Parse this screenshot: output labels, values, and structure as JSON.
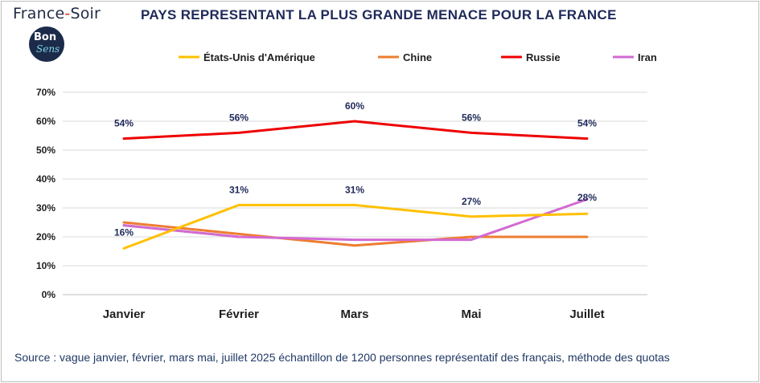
{
  "brand": {
    "name_left": "France",
    "name_dash": "-",
    "name_right": "Soir",
    "logo_line1": "Bon",
    "logo_line2": "Sens"
  },
  "chart_data": {
    "type": "line",
    "title": "PAYS REPRESENTANT LA PLUS GRANDE MENACE POUR LA FRANCE",
    "categories": [
      "Janvier",
      "Février",
      "Mars",
      "Mai",
      "Juillet"
    ],
    "ylim": [
      0,
      70
    ],
    "yticks": [
      0,
      10,
      20,
      30,
      40,
      50,
      60,
      70
    ],
    "ytick_labels": [
      "0%",
      "10%",
      "20%",
      "30%",
      "40%",
      "50%",
      "60%",
      "70%"
    ],
    "grid": true,
    "legend_position": "top",
    "series": [
      {
        "name": "États-Unis d'Amérique",
        "color": "#ffc000",
        "values": [
          16,
          31,
          31,
          27,
          28
        ],
        "labels": [
          "16%",
          "31%",
          "31%",
          "27%",
          "28%"
        ]
      },
      {
        "name": "Chine",
        "color": "#ed7d31",
        "values": [
          25,
          21,
          17,
          20,
          20
        ],
        "labels": []
      },
      {
        "name": "Russie",
        "color": "#ee0000",
        "values": [
          54,
          56,
          60,
          56,
          54
        ],
        "labels": [
          "54%",
          "56%",
          "60%",
          "56%",
          "54%"
        ]
      },
      {
        "name": "Iran",
        "color": "#d36ad3",
        "values": [
          24,
          20,
          19,
          19,
          33
        ],
        "labels": []
      }
    ],
    "extra_series": {
      "color": "#a5a5a5",
      "values": [
        24,
        20,
        null,
        null,
        null
      ]
    }
  },
  "source": "Source : vague janvier, février, mars  mai, juillet 2025 échantillon de 1200 personnes représentatif des français, méthode des quotas"
}
